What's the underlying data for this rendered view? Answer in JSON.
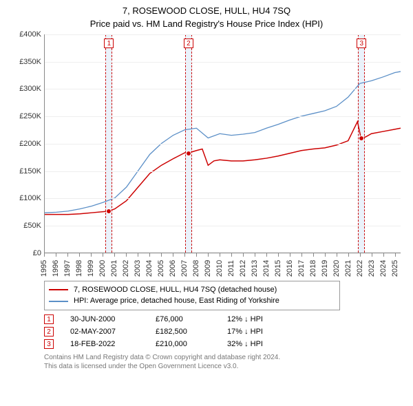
{
  "title": {
    "line1": "7, ROSEWOOD CLOSE, HULL, HU4 7SQ",
    "line2": "Price paid vs. HM Land Registry's House Price Index (HPI)"
  },
  "chart": {
    "type": "line",
    "x_range": [
      1995,
      2025.5
    ],
    "y_range": [
      0,
      400000
    ],
    "ytick_step": 50000,
    "ytick_labels": [
      "£0",
      "£50K",
      "£100K",
      "£150K",
      "£200K",
      "£250K",
      "£300K",
      "£350K",
      "£400K"
    ],
    "xtick_step": 1,
    "xtick_labels": [
      "1995",
      "1996",
      "1997",
      "1998",
      "1999",
      "2000",
      "2001",
      "2002",
      "2003",
      "2004",
      "2005",
      "2006",
      "2007",
      "2008",
      "2009",
      "2010",
      "2011",
      "2012",
      "2013",
      "2014",
      "2015",
      "2016",
      "2017",
      "2018",
      "2019",
      "2020",
      "2021",
      "2022",
      "2023",
      "2024",
      "2025"
    ],
    "grid_color": "#eeeeee",
    "axis_color": "#888888",
    "band_fill": "#eaf2fb",
    "band_dash_color": "#cc0000",
    "marker_box_border": "#cc0000",
    "series": [
      {
        "name": "price_paid",
        "color": "#cc0000",
        "width": 1.5,
        "data": [
          [
            1995,
            70000
          ],
          [
            1996,
            70000
          ],
          [
            1997,
            70000
          ],
          [
            1998,
            71000
          ],
          [
            1999,
            73000
          ],
          [
            2000,
            75000
          ],
          [
            2000.5,
            76000
          ],
          [
            2001,
            80000
          ],
          [
            2002,
            95000
          ],
          [
            2003,
            120000
          ],
          [
            2004,
            145000
          ],
          [
            2005,
            160000
          ],
          [
            2006,
            172000
          ],
          [
            2007,
            183000
          ],
          [
            2007.3,
            182500
          ],
          [
            2008,
            187000
          ],
          [
            2008.5,
            190000
          ],
          [
            2009,
            160000
          ],
          [
            2009.5,
            168000
          ],
          [
            2010,
            170000
          ],
          [
            2011,
            168000
          ],
          [
            2012,
            168000
          ],
          [
            2013,
            170000
          ],
          [
            2014,
            173000
          ],
          [
            2015,
            177000
          ],
          [
            2016,
            182000
          ],
          [
            2017,
            187000
          ],
          [
            2018,
            190000
          ],
          [
            2019,
            192000
          ],
          [
            2020,
            197000
          ],
          [
            2021,
            205000
          ],
          [
            2021.8,
            240000
          ],
          [
            2022.1,
            210000
          ],
          [
            2022.5,
            212000
          ],
          [
            2023,
            218000
          ],
          [
            2024,
            222000
          ],
          [
            2025,
            226000
          ],
          [
            2025.5,
            228000
          ]
        ]
      },
      {
        "name": "hpi",
        "color": "#5b8fc7",
        "width": 1.3,
        "data": [
          [
            1995,
            73000
          ],
          [
            1996,
            74000
          ],
          [
            1997,
            76000
          ],
          [
            1998,
            80000
          ],
          [
            1999,
            85000
          ],
          [
            2000,
            92000
          ],
          [
            2001,
            100000
          ],
          [
            2002,
            120000
          ],
          [
            2003,
            150000
          ],
          [
            2004,
            180000
          ],
          [
            2005,
            200000
          ],
          [
            2006,
            215000
          ],
          [
            2007,
            225000
          ],
          [
            2008,
            228000
          ],
          [
            2009,
            210000
          ],
          [
            2010,
            218000
          ],
          [
            2011,
            215000
          ],
          [
            2012,
            217000
          ],
          [
            2013,
            220000
          ],
          [
            2014,
            228000
          ],
          [
            2015,
            235000
          ],
          [
            2016,
            243000
          ],
          [
            2017,
            250000
          ],
          [
            2018,
            255000
          ],
          [
            2019,
            260000
          ],
          [
            2020,
            268000
          ],
          [
            2021,
            285000
          ],
          [
            2022,
            310000
          ],
          [
            2023,
            315000
          ],
          [
            2024,
            322000
          ],
          [
            2025,
            330000
          ],
          [
            2025.5,
            332000
          ]
        ]
      }
    ],
    "sale_points": [
      {
        "num": "1",
        "x": 2000.5,
        "y": 76000
      },
      {
        "num": "2",
        "x": 2007.3,
        "y": 182500
      },
      {
        "num": "3",
        "x": 2022.1,
        "y": 210000
      }
    ],
    "label_fontsize": 11
  },
  "legend": {
    "items": [
      {
        "color": "#cc0000",
        "label": "7, ROSEWOOD CLOSE, HULL, HU4 7SQ (detached house)"
      },
      {
        "color": "#5b8fc7",
        "label": "HPI: Average price, detached house, East Riding of Yorkshire"
      }
    ]
  },
  "sales": [
    {
      "num": "1",
      "date": "30-JUN-2000",
      "price": "£76,000",
      "diff": "12% ↓ HPI"
    },
    {
      "num": "2",
      "date": "02-MAY-2007",
      "price": "£182,500",
      "diff": "17% ↓ HPI"
    },
    {
      "num": "3",
      "date": "18-FEB-2022",
      "price": "£210,000",
      "diff": "32% ↓ HPI"
    }
  ],
  "copyright": {
    "line1": "Contains HM Land Registry data © Crown copyright and database right 2024.",
    "line2": "This data is licensed under the Open Government Licence v3.0."
  }
}
